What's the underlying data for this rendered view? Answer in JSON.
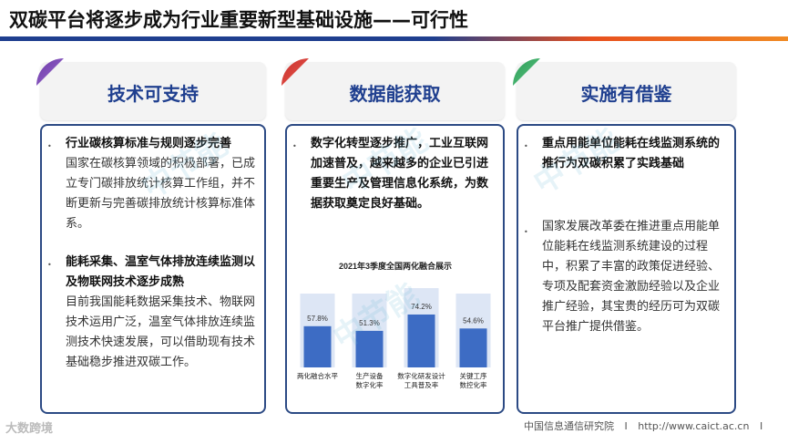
{
  "title": "双碳平台将逐步成为行业重要新型基础设施——可行性",
  "columns": [
    {
      "heading": "技术可支持",
      "items": [
        {
          "bold": "行业碳核算标准与规则逐步完善",
          "text": "国家在碳核算领域的积极部署，已成立专门碳排放统计核算工作组，并不断更新与完善碳排放统计核算标准体系。"
        },
        {
          "bold": "能耗采集、温室气体排放连续监测以及物联网技术逐步成熟",
          "text": "目前我国能耗数据采集技术、物联网技术运用广泛，温室气体排放连续监测技术快速发展，可以借助现有技术基础稳步推进双碳工作。"
        }
      ]
    },
    {
      "heading": "数据能获取",
      "items": [
        {
          "bold": "数字化转型逐步推广，工业互联网加速普及，越来越多的企业已引进重要生产及管理信息化系统，为数据获取奠定良好基础。",
          "text": ""
        }
      ]
    },
    {
      "heading": "实施有借鉴",
      "items": [
        {
          "bold": "重点用能单位能耗在线监测系统的推行为双碳积累了实践基础",
          "text": "国家发展改革委在推进重点用能单位能耗在线监测系统建设的过程中，积累了丰富的政策促进经验、专项及配套资金激励经验以及企业推广经验，其宝贵的经历可为双碳平台推广提供借鉴。"
        }
      ]
    }
  ],
  "chart_data": {
    "type": "bar",
    "title": "2021年3季度全国两化融合展示",
    "categories": [
      "两化融合水平",
      "生产设备数字化率",
      "数字化研发设计工具普及率",
      "关键工序数控化率"
    ],
    "category_lines": [
      [
        "两化融合水平"
      ],
      [
        "生产设备",
        "数字化率"
      ],
      [
        "数字化研发设计",
        "工具普及率"
      ],
      [
        "关键工序",
        "数控化率"
      ]
    ],
    "values": [
      57.8,
      51.3,
      74.2,
      54.6
    ],
    "value_labels": [
      "57.8%",
      "51.3%",
      "74.2%",
      "54.6%"
    ],
    "ylim": [
      0,
      100
    ],
    "colors": {
      "front": "#3d6cc4",
      "back": "#dde6f5"
    }
  },
  "watermark": "中节能",
  "footer": {
    "org": "中国信息通信研究院",
    "sep1": "I",
    "url": "http://www.caict.ac.cn",
    "sep2": "I"
  },
  "logo_text": "大数跨境"
}
